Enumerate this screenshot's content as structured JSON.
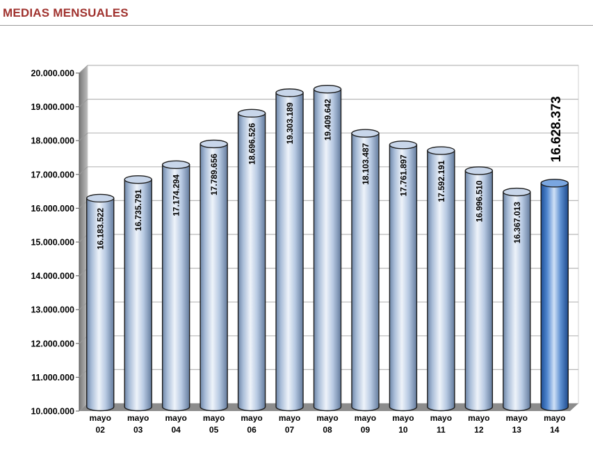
{
  "header": {
    "title": "MEDIAS MENSUALES"
  },
  "chart_data": {
    "type": "bar",
    "title": "MEDIAS MENSUALES",
    "xlabel": "",
    "ylabel": "",
    "ylim": [
      10000000,
      20000000
    ],
    "y_ticks": [
      "10.000.000",
      "11.000.000",
      "12.000.000",
      "13.000.000",
      "14.000.000",
      "15.000.000",
      "16.000.000",
      "17.000.000",
      "18.000.000",
      "19.000.000",
      "20.000.000"
    ],
    "categories": [
      {
        "line1": "mayo",
        "line2": "02"
      },
      {
        "line1": "mayo",
        "line2": "03"
      },
      {
        "line1": "mayo",
        "line2": "04"
      },
      {
        "line1": "mayo",
        "line2": "05"
      },
      {
        "line1": "mayo",
        "line2": "06"
      },
      {
        "line1": "mayo",
        "line2": "07"
      },
      {
        "line1": "mayo",
        "line2": "08"
      },
      {
        "line1": "mayo",
        "line2": "09"
      },
      {
        "line1": "mayo",
        "line2": "10"
      },
      {
        "line1": "mayo",
        "line2": "11"
      },
      {
        "line1": "mayo",
        "line2": "12"
      },
      {
        "line1": "mayo",
        "line2": "13"
      },
      {
        "line1": "mayo",
        "line2": "14"
      }
    ],
    "values": [
      16183522,
      16735791,
      17174294,
      17789656,
      18696526,
      19303189,
      19409642,
      18103487,
      17761897,
      17592191,
      16996510,
      16367013,
      16628373
    ],
    "data_labels": [
      "16.183.522",
      "16.735.791",
      "17.174.294",
      "17.789.656",
      "18.696.526",
      "19.303.189",
      "19.409.642",
      "18.103.487",
      "17.761.897",
      "17.592.191",
      "16.996.510",
      "16.367.013",
      "16.628.373"
    ],
    "highlight_index": 12,
    "grid": true,
    "legend": "none",
    "colors": {
      "bar": "#b7c9e2",
      "bar_dark": "#6f87a8",
      "bar_highlight": "#5d8fd0",
      "bar_highlight_dark": "#1f4f96",
      "wall": "#ffffff",
      "side_wall": "#8a8a8a",
      "floor": "#8c8c8c",
      "grid": "#b8b8b8",
      "title": "#a0322e"
    }
  }
}
